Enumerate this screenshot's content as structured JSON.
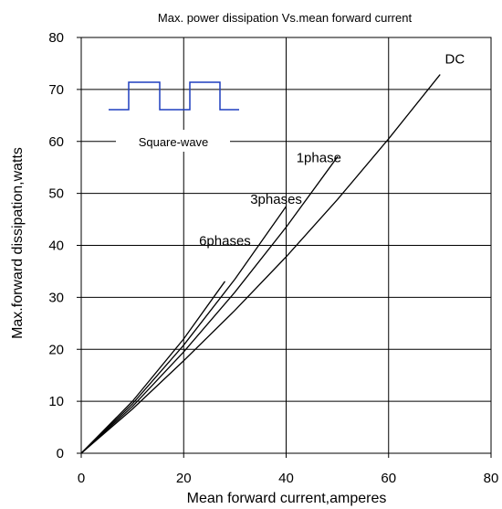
{
  "chart_data": {
    "type": "line",
    "title": "Max. power dissipation Vs.mean forward current",
    "xlabel": "Mean forward current,amperes",
    "ylabel": "Max.forward dissipation,watts",
    "xlim": [
      0,
      80
    ],
    "ylim": [
      0,
      80
    ],
    "xticks": [
      0,
      20,
      40,
      60,
      80
    ],
    "yticks": [
      0,
      10,
      20,
      30,
      40,
      50,
      60,
      70,
      80
    ],
    "grid": true,
    "annotation": "Square-wave",
    "series": [
      {
        "name": "DC",
        "x": [
          0,
          10,
          20,
          30,
          40,
          50,
          60,
          70
        ],
        "y": [
          0,
          8.5,
          17.8,
          27.5,
          37.8,
          48.8,
          60.5,
          72.8
        ],
        "label_at": [
          71,
          75
        ]
      },
      {
        "name": "1phase",
        "x": [
          0,
          10,
          20,
          30,
          40,
          50
        ],
        "y": [
          0,
          9.0,
          19.5,
          31.0,
          43.5,
          57.0
        ],
        "label_at": [
          42,
          56
        ]
      },
      {
        "name": "3phases",
        "x": [
          0,
          10,
          20,
          30,
          40
        ],
        "y": [
          0,
          9.5,
          20.8,
          33.5,
          47.5
        ],
        "label_at": [
          33,
          48
        ]
      },
      {
        "name": "6phases",
        "x": [
          0,
          10,
          20,
          28
        ],
        "y": [
          0,
          10.0,
          22.0,
          33.0
        ],
        "label_at": [
          23,
          40
        ]
      }
    ]
  }
}
